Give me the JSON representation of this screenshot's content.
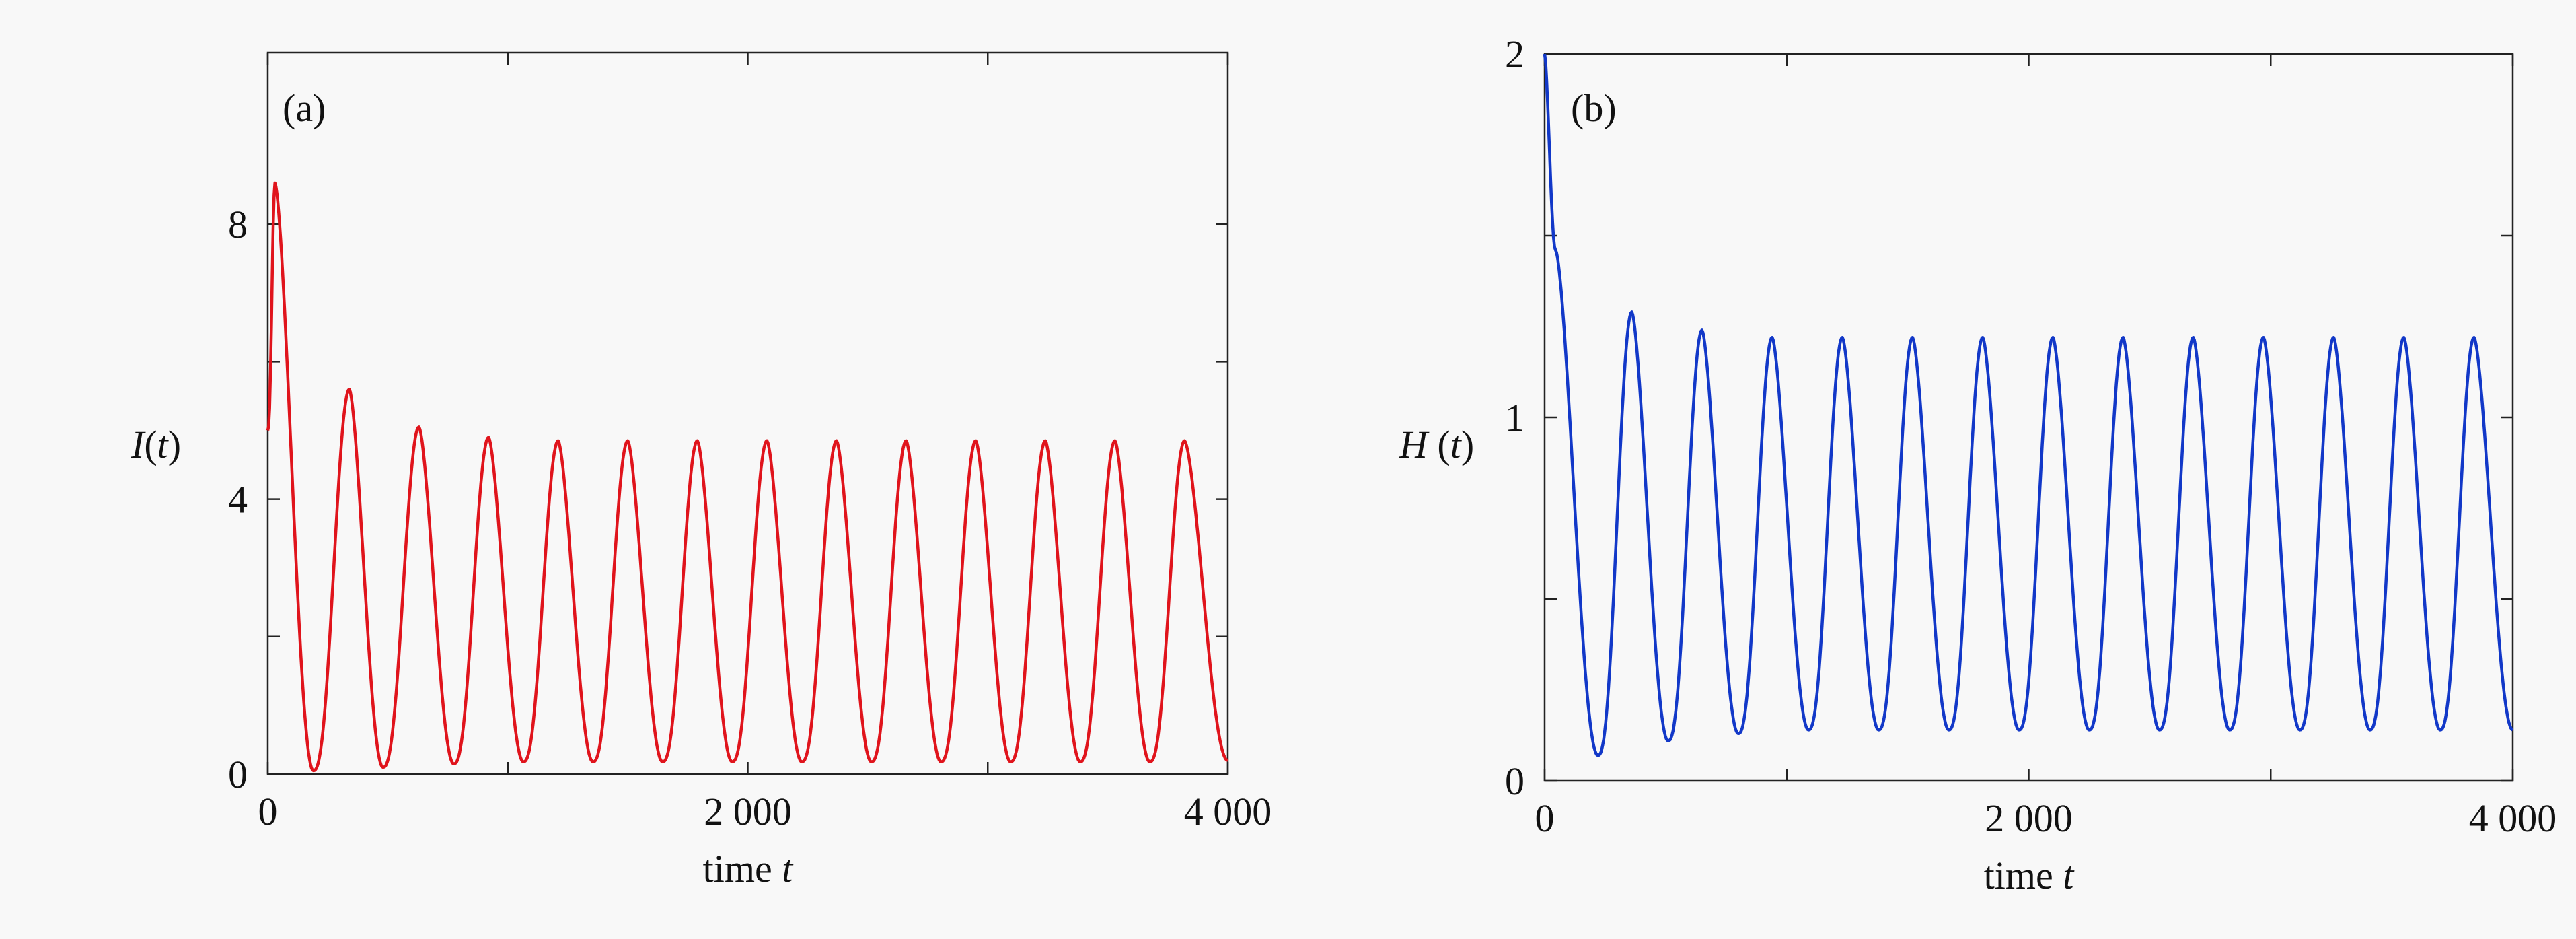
{
  "chart_data": [
    {
      "type": "line",
      "panel_label": "(a)",
      "xlabel": "time t",
      "ylabel": "I(t)",
      "xlim": [
        0,
        4000
      ],
      "ylim": [
        0,
        10.5
      ],
      "xticks": [
        0,
        2000,
        4000
      ],
      "xtick_labels": [
        "0",
        "2 000",
        "4 000"
      ],
      "yticks": [
        0,
        4,
        8
      ],
      "ytick_labels": [
        "0",
        "4",
        "8"
      ],
      "series": [
        {
          "color": "#e0141c",
          "peaks": [
            {
              "t": 30,
              "v": 8.6
            },
            {
              "t": 340,
              "v": 5.6
            },
            {
              "t": 630,
              "v": 5.05
            },
            {
              "t": 920,
              "v": 4.9
            },
            {
              "t": 1210,
              "v": 4.85
            },
            {
              "t": 1500,
              "v": 4.85
            },
            {
              "t": 1790,
              "v": 4.85
            },
            {
              "t": 2080,
              "v": 4.85
            },
            {
              "t": 2370,
              "v": 4.85
            },
            {
              "t": 2660,
              "v": 4.85
            },
            {
              "t": 2950,
              "v": 4.85
            },
            {
              "t": 3240,
              "v": 4.85
            },
            {
              "t": 3530,
              "v": 4.85
            },
            {
              "t": 3820,
              "v": 4.85
            }
          ],
          "troughs": [
            {
              "t": 190,
              "v": 0.05
            },
            {
              "t": 480,
              "v": 0.1
            },
            {
              "t": 775,
              "v": 0.15
            },
            {
              "t": 1065,
              "v": 0.18
            },
            {
              "t": 1355,
              "v": 0.18
            },
            {
              "t": 1645,
              "v": 0.18
            },
            {
              "t": 1935,
              "v": 0.18
            },
            {
              "t": 2225,
              "v": 0.18
            },
            {
              "t": 2515,
              "v": 0.18
            },
            {
              "t": 2805,
              "v": 0.18
            },
            {
              "t": 3095,
              "v": 0.18
            },
            {
              "t": 3385,
              "v": 0.18
            },
            {
              "t": 3675,
              "v": 0.18
            }
          ],
          "start": {
            "t": 0,
            "v": 5.0
          },
          "end": {
            "t": 4000,
            "v": 0.2
          }
        }
      ]
    },
    {
      "type": "line",
      "panel_label": "(b)",
      "xlabel": "time t",
      "ylabel": "H (t)",
      "xlim": [
        0,
        4000
      ],
      "ylim": [
        0,
        2
      ],
      "xticks": [
        0,
        2000,
        4000
      ],
      "xtick_labels": [
        "0",
        "2 000",
        "4 000"
      ],
      "yticks": [
        0,
        1,
        2
      ],
      "ytick_labels": [
        "0",
        "1",
        "2"
      ],
      "series": [
        {
          "color": "#1238c8",
          "peaks": [
            {
              "t": 45,
              "v": 1.46
            },
            {
              "t": 360,
              "v": 1.29
            },
            {
              "t": 650,
              "v": 1.24
            },
            {
              "t": 940,
              "v": 1.22
            },
            {
              "t": 1230,
              "v": 1.22
            },
            {
              "t": 1520,
              "v": 1.22
            },
            {
              "t": 1810,
              "v": 1.22
            },
            {
              "t": 2100,
              "v": 1.22
            },
            {
              "t": 2390,
              "v": 1.22
            },
            {
              "t": 2680,
              "v": 1.22
            },
            {
              "t": 2970,
              "v": 1.22
            },
            {
              "t": 3260,
              "v": 1.22
            },
            {
              "t": 3550,
              "v": 1.22
            },
            {
              "t": 3840,
              "v": 1.22
            }
          ],
          "troughs": [
            {
              "t": 220,
              "v": 0.07
            },
            {
              "t": 510,
              "v": 0.11
            },
            {
              "t": 800,
              "v": 0.13
            },
            {
              "t": 1090,
              "v": 0.14
            },
            {
              "t": 1380,
              "v": 0.14
            },
            {
              "t": 1670,
              "v": 0.14
            },
            {
              "t": 1960,
              "v": 0.14
            },
            {
              "t": 2250,
              "v": 0.14
            },
            {
              "t": 2540,
              "v": 0.14
            },
            {
              "t": 2830,
              "v": 0.14
            },
            {
              "t": 3120,
              "v": 0.14
            },
            {
              "t": 3410,
              "v": 0.14
            },
            {
              "t": 3700,
              "v": 0.14
            }
          ],
          "start": {
            "t": 0,
            "v": 2.0
          },
          "end": {
            "t": 4000,
            "v": 0.14
          }
        }
      ]
    }
  ]
}
